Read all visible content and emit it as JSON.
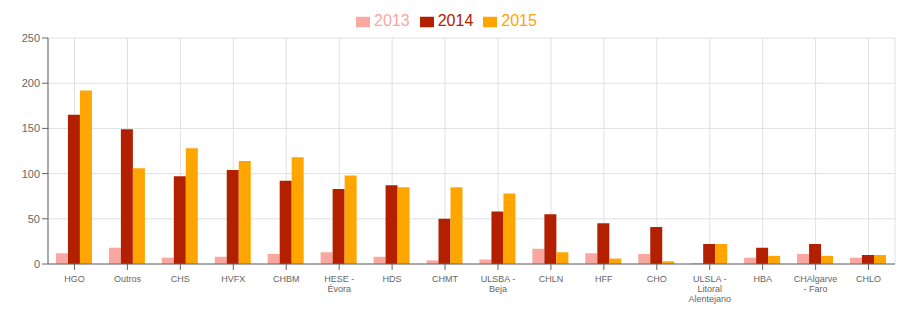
{
  "chart_data": {
    "type": "bar",
    "categories": [
      "HGO",
      "Outros",
      "CHS",
      "HVFX",
      "CHBM",
      "HESE -\nÉvora",
      "HDS",
      "CHMT",
      "ULSBA -\nBeja",
      "CHLN",
      "HFF",
      "CHO",
      "ULSLA -\nLitoral\nAlentejano",
      "HBA",
      "CHAlgarve\n- Faro",
      "CHLO"
    ],
    "series": [
      {
        "name": "2013",
        "color": "#f8a8a0",
        "values": [
          12,
          18,
          7,
          8,
          11,
          13,
          8,
          4,
          5,
          17,
          12,
          11,
          1,
          7,
          11,
          7
        ]
      },
      {
        "name": "2014",
        "color": "#b22000",
        "values": [
          165,
          149,
          97,
          104,
          92,
          83,
          87,
          50,
          58,
          55,
          45,
          41,
          22,
          18,
          22,
          10
        ]
      },
      {
        "name": "2015",
        "color": "#ffa500",
        "values": [
          192,
          106,
          128,
          114,
          118,
          98,
          85,
          85,
          78,
          13,
          6,
          3,
          22,
          9,
          9,
          10
        ]
      }
    ],
    "ylim": [
      0,
      250
    ],
    "yticks": [
      0,
      50,
      100,
      150,
      200,
      250
    ],
    "grid": true,
    "legend": "top"
  }
}
